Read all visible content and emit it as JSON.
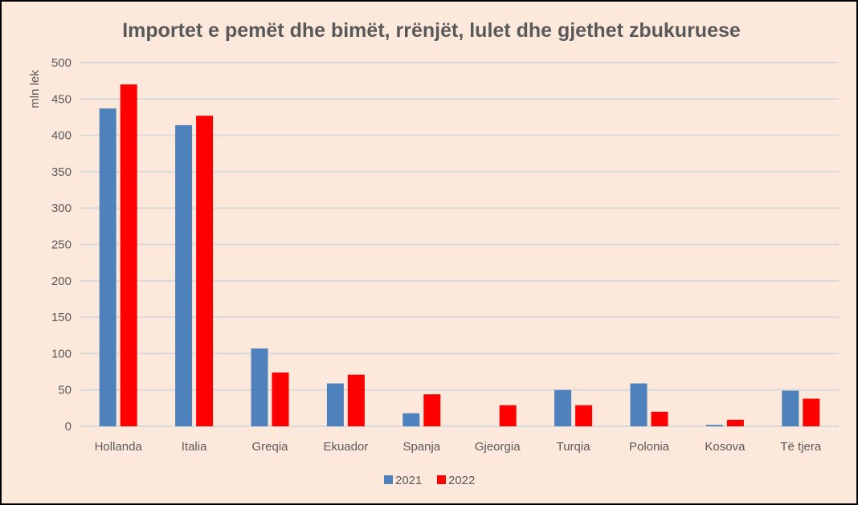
{
  "chart_data": {
    "type": "bar",
    "title": "Importet e pemët dhe bimët, rrënjët, lulet dhe gjethet zbukuruese",
    "xlabel": "",
    "ylabel": "mln lek",
    "ylim": [
      0,
      500
    ],
    "yticks": [
      0,
      50,
      100,
      150,
      200,
      250,
      300,
      350,
      400,
      450,
      500
    ],
    "grid": true,
    "legend_position": "bottom",
    "categories": [
      "Hollanda",
      "Italia",
      "Greqia",
      "Ekuador",
      "Spanja",
      "Gjeorgia",
      "Turqia",
      "Polonia",
      "Kosova",
      "Të tjera"
    ],
    "series": [
      {
        "name": "2021",
        "color": "#4f81bd",
        "values": [
          437,
          414,
          107,
          59,
          18,
          0,
          50,
          59,
          2,
          49
        ]
      },
      {
        "name": "2022",
        "color": "#ff0000",
        "values": [
          470,
          427,
          74,
          71,
          44,
          29,
          29,
          20,
          9,
          38
        ]
      }
    ]
  }
}
